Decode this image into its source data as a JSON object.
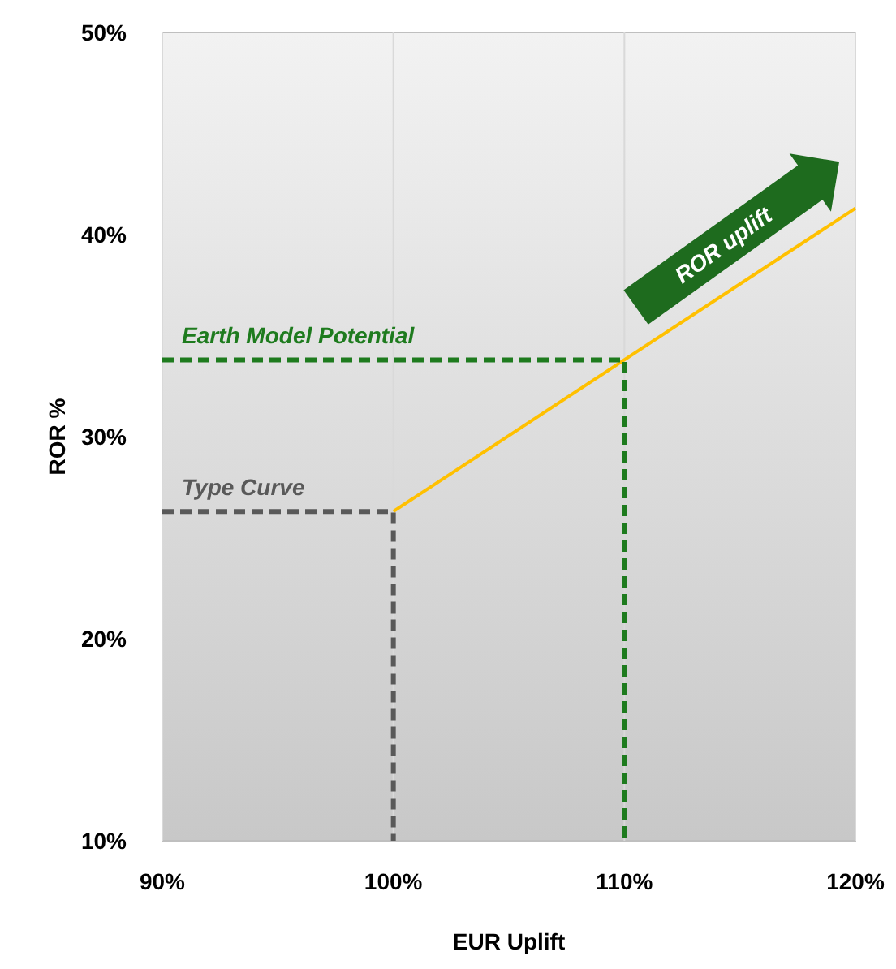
{
  "chart_data": {
    "type": "line",
    "xlabel": "EUR Uplift",
    "ylabel": "ROR %",
    "xlim": [
      90,
      120
    ],
    "xticks": [
      {
        "value": 90,
        "label": "90%"
      },
      {
        "value": 100,
        "label": "100%"
      },
      {
        "value": 110,
        "label": "110%"
      },
      {
        "value": 120,
        "label": "120%"
      }
    ],
    "ylim": [
      10,
      50
    ],
    "yticks": [
      {
        "value": 10,
        "label": "10%"
      },
      {
        "value": 20,
        "label": "20%"
      },
      {
        "value": 30,
        "label": "30%"
      },
      {
        "value": 40,
        "label": "40%"
      },
      {
        "value": 50,
        "label": "50%"
      }
    ],
    "grid": "x",
    "marker": "none",
    "series": [
      {
        "x": [
          100,
          120
        ],
        "values": [
          26.3,
          41.3
        ],
        "color": "#ffc000",
        "line_style": "solid"
      },
      {
        "name": "Type Curve",
        "x": [
          90,
          100,
          100
        ],
        "values": [
          26.3,
          26.3,
          10
        ],
        "color": "#595959",
        "line_style": "dashed"
      },
      {
        "name": "Earth Model Potential",
        "x": [
          90,
          110,
          110
        ],
        "values": [
          33.8,
          33.8,
          10
        ],
        "color": "#1e7b1e",
        "line_style": "dashed"
      }
    ],
    "annotations": [
      "ROR uplift"
    ]
  }
}
